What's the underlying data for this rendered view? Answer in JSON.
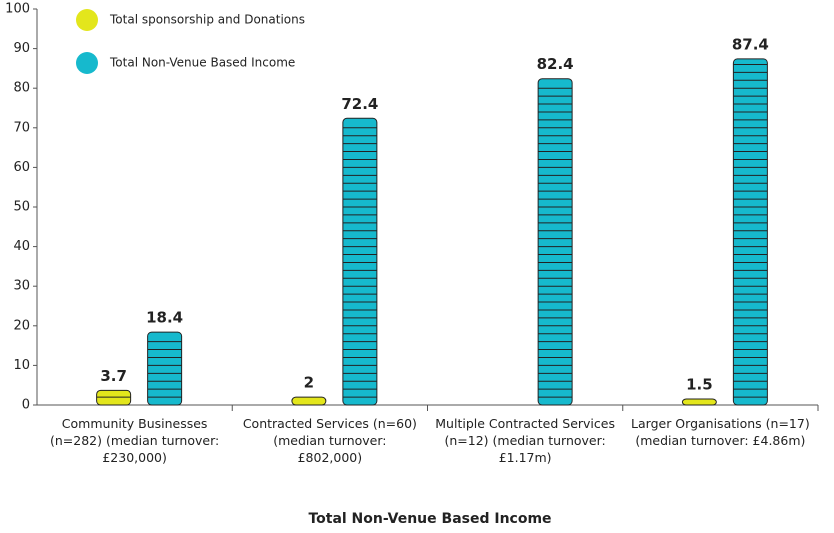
{
  "chart_data": {
    "type": "bar",
    "xlabel": "Total Non-Venue Based Income",
    "categories": [
      "Community Businesses (n=282) (median turnover: £230,000)",
      "Contracted Services (n=60) (median turnover: £802,000)",
      "Multiple Contracted Services (n=12) (median turnover: £1.17m)",
      "Larger Organisations (n=17) (median turnover: £4.86m)"
    ],
    "series": [
      {
        "name": "Total sponsorship and Donations",
        "color": "#e3e61c",
        "values": [
          3.7,
          2,
          null,
          1.5
        ]
      },
      {
        "name": "Total Non-Venue Based Income",
        "color": "#16b9cd",
        "values": [
          18.4,
          72.4,
          82.4,
          87.4
        ]
      }
    ],
    "ylim": [
      0,
      100
    ],
    "yticks": [
      0,
      10,
      20,
      30,
      40,
      50,
      60,
      70,
      80,
      90,
      100
    ],
    "grid": false,
    "legend": "upper left"
  }
}
